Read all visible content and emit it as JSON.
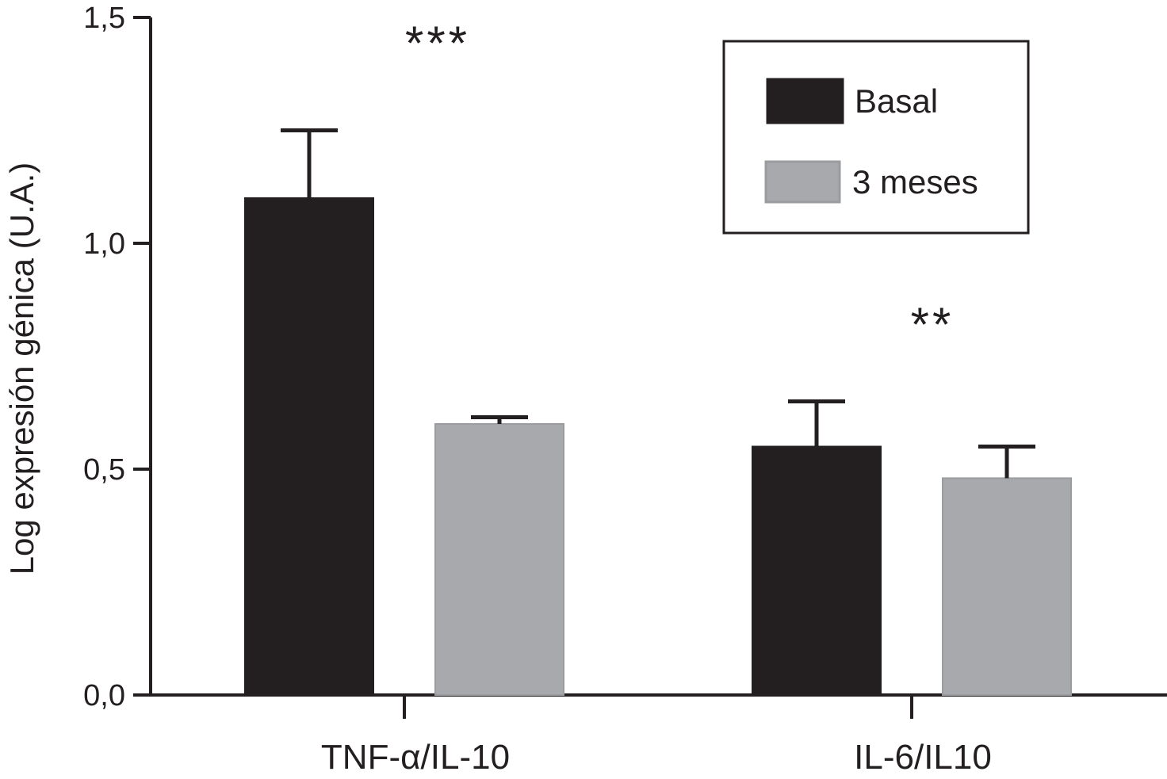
{
  "chart_data": {
    "type": "bar",
    "ylabel": "Log expresión génica (U.A.)",
    "xlabel": "",
    "ylim": [
      0,
      1.5
    ],
    "yticks": [
      {
        "value": 0.0,
        "label": "0,0"
      },
      {
        "value": 0.5,
        "label": "0,5"
      },
      {
        "value": 1.0,
        "label": "1,0"
      },
      {
        "value": 1.5,
        "label": "1,5"
      }
    ],
    "categories": [
      "TNF-α/IL-10",
      "IL-6/IL10"
    ],
    "series": [
      {
        "name": "Basal",
        "color": "#231f20",
        "values": [
          1.1,
          0.55
        ],
        "errors": [
          0.15,
          0.1
        ]
      },
      {
        "name": "3 meses",
        "color": "#a7a9ac",
        "values": [
          0.6,
          0.48
        ],
        "errors": [
          0.015,
          0.07
        ]
      }
    ],
    "annotations": [
      "***",
      "**"
    ],
    "legend": {
      "position": "top-right"
    },
    "grid": false
  }
}
